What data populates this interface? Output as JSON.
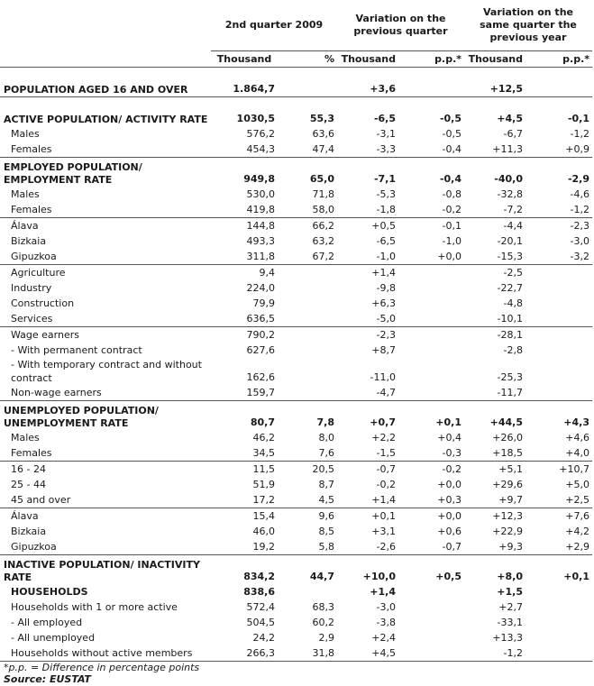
{
  "header": {
    "col1": "2nd quarter 2009",
    "col2": "Variation on the previous quarter",
    "col3": "Variation on the same quarter the previous year",
    "sub": [
      "Thousand",
      "%",
      "Thousand",
      "p.p.*",
      "Thousand",
      "p.p.*"
    ]
  },
  "rows": [
    {
      "label": "POPULATION AGED 16 AND OVER",
      "v": [
        "1.864,7",
        "",
        "+3,6",
        "",
        "+12,5",
        ""
      ]
    },
    {
      "label": "ACTIVE POPULATION/ ACTIVITY RATE",
      "v": [
        "1030,5",
        "55,3",
        "-6,5",
        "-0,5",
        "+4,5",
        "-0,1"
      ]
    },
    {
      "label": "Males",
      "v": [
        "576,2",
        "63,6",
        "-3,1",
        "-0,5",
        "-6,7",
        "-1,2"
      ]
    },
    {
      "label": "Females",
      "v": [
        "454,3",
        "47,4",
        "-3,3",
        "-0,4",
        "+11,3",
        "+0,9"
      ]
    },
    {
      "label": "EMPLOYED POPULATION/ EMPLOYMENT RATE",
      "v": [
        "949,8",
        "65,0",
        "-7,1",
        "-0,4",
        "-40,0",
        "-2,9"
      ]
    },
    {
      "label": "Males",
      "v": [
        "530,0",
        "71,8",
        "-5,3",
        "-0,8",
        "-32,8",
        "-4,6"
      ]
    },
    {
      "label": "Females",
      "v": [
        "419,8",
        "58,0",
        "-1,8",
        "-0,2",
        "-7,2",
        "-1,2"
      ]
    },
    {
      "label": "Álava",
      "v": [
        "144,8",
        "66,2",
        "+0,5",
        "-0,1",
        "-4,4",
        "-2,3"
      ]
    },
    {
      "label": "Bizkaia",
      "v": [
        "493,3",
        "63,2",
        "-6,5",
        "-1,0",
        "-20,1",
        "-3,0"
      ]
    },
    {
      "label": "Gipuzkoa",
      "v": [
        "311,8",
        "67,2",
        "-1,0",
        "+0,0",
        "-15,3",
        "-3,2"
      ]
    },
    {
      "label": "Agriculture",
      "v": [
        "9,4",
        "",
        "+1,4",
        "",
        "-2,5",
        ""
      ]
    },
    {
      "label": "Industry",
      "v": [
        "224,0",
        "",
        "-9,8",
        "",
        "-22,7",
        ""
      ]
    },
    {
      "label": "Construction",
      "v": [
        "79,9",
        "",
        "+6,3",
        "",
        "-4,8",
        ""
      ]
    },
    {
      "label": "Services",
      "v": [
        "636,5",
        "",
        "-5,0",
        "",
        "-10,1",
        ""
      ]
    },
    {
      "label": "Wage earners",
      "v": [
        "790,2",
        "",
        "-2,3",
        "",
        "-28,1",
        ""
      ]
    },
    {
      "label": "- With permanent contract",
      "v": [
        "627,6",
        "",
        "+8,7",
        "",
        "-2,8",
        ""
      ]
    },
    {
      "label": "- With temporary contract and without contract",
      "v": [
        "162,6",
        "",
        "-11,0",
        "",
        "-25,3",
        ""
      ]
    },
    {
      "label": "Non-wage earners",
      "v": [
        "159,7",
        "",
        "-4,7",
        "",
        "-11,7",
        ""
      ]
    },
    {
      "label": "UNEMPLOYED POPULATION/ UNEMPLOYMENT RATE",
      "v": [
        "80,7",
        "7,8",
        "+0,7",
        "+0,1",
        "+44,5",
        "+4,3"
      ]
    },
    {
      "label": "Males",
      "v": [
        "46,2",
        "8,0",
        "+2,2",
        "+0,4",
        "+26,0",
        "+4,6"
      ]
    },
    {
      "label": "Females",
      "v": [
        "34,5",
        "7,6",
        "-1,5",
        "-0,3",
        "+18,5",
        "+4,0"
      ]
    },
    {
      "label": "16 - 24",
      "v": [
        "11,5",
        "20,5",
        "-0,7",
        "-0,2",
        "+5,1",
        "+10,7"
      ]
    },
    {
      "label": "25 - 44",
      "v": [
        "51,9",
        "8,7",
        "-0,2",
        "+0,0",
        "+29,6",
        "+5,0"
      ]
    },
    {
      "label": "45 and over",
      "v": [
        "17,2",
        "4,5",
        "+1,4",
        "+0,3",
        "+9,7",
        "+2,5"
      ]
    },
    {
      "label": "Álava",
      "v": [
        "15,4",
        "9,6",
        "+0,1",
        "+0,0",
        "+12,3",
        "+7,6"
      ]
    },
    {
      "label": "Bizkaia",
      "v": [
        "46,0",
        "8,5",
        "+3,1",
        "+0,6",
        "+22,9",
        "+4,2"
      ]
    },
    {
      "label": "Gipuzkoa",
      "v": [
        "19,2",
        "5,8",
        "-2,6",
        "-0,7",
        "+9,3",
        "+2,9"
      ]
    },
    {
      "label": "INACTIVE POPULATION/ INACTIVITY RATE",
      "v": [
        "834,2",
        "44,7",
        "+10,0",
        "+0,5",
        "+8,0",
        "+0,1"
      ]
    },
    {
      "label": "HOUSEHOLDS",
      "v": [
        "838,6",
        "",
        "+1,4",
        "",
        "+1,5",
        ""
      ]
    },
    {
      "label": "Households with 1 or more active",
      "v": [
        "572,4",
        "68,3",
        "-3,0",
        "",
        "+2,7",
        ""
      ]
    },
    {
      "label": "- All employed",
      "v": [
        "504,5",
        "60,2",
        "-3,8",
        "",
        "-33,1",
        ""
      ]
    },
    {
      "label": "- All unemployed",
      "v": [
        "24,2",
        "2,9",
        "+2,4",
        "",
        "+13,3",
        ""
      ]
    },
    {
      "label": "Households without active members",
      "v": [
        "266,3",
        "31,8",
        "+4,5",
        "",
        "-1,2",
        ""
      ]
    }
  ],
  "footnote": "*p.p. = Difference in percentage points",
  "source": "Source: EUSTAT"
}
